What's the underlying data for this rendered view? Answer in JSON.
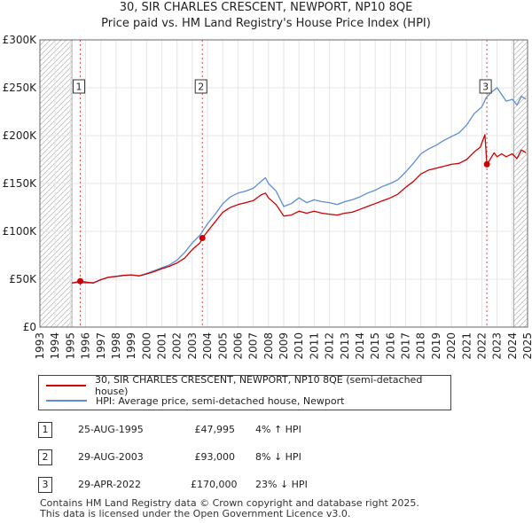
{
  "title_line1": "30, SIR CHARLES CRESCENT, NEWPORT, NP10 8QE",
  "title_line2": "Price paid vs. HM Land Registry's House Price Index (HPI)",
  "chart_data": {
    "type": "line",
    "title": "30, SIR CHARLES CRESCENT, NEWPORT, NP10 8QE — Price paid vs. HM Land Registry's House Price Index (HPI)",
    "xlim": [
      1993.0,
      2025.0
    ],
    "ylim": [
      0,
      300000
    ],
    "y_ticks": [
      0,
      50000,
      100000,
      150000,
      200000,
      250000,
      300000
    ],
    "y_tick_labels": [
      "£0",
      "£50K",
      "£100K",
      "£150K",
      "£200K",
      "£250K",
      "£300K"
    ],
    "x_ticks": [
      1993,
      1994,
      1995,
      1996,
      1997,
      1998,
      1999,
      2000,
      2001,
      2002,
      2003,
      2004,
      2005,
      2006,
      2007,
      2008,
      2009,
      2010,
      2011,
      2012,
      2013,
      2014,
      2015,
      2016,
      2017,
      2018,
      2019,
      2020,
      2021,
      2022,
      2023,
      2024,
      2025
    ],
    "grid": true,
    "hatched_ranges": [
      [
        1993.0,
        1995.1
      ],
      [
        2024.1,
        2025.0
      ]
    ],
    "series": [
      {
        "name": "30, SIR CHARLES CRESCENT, NEWPORT, NP10 8QE (semi-detached house)",
        "color": "#cc0000",
        "x": [
          1995.1,
          1995.65,
          1996.0,
          1996.5,
          1997.0,
          1997.5,
          1998.0,
          1998.5,
          1999.0,
          1999.5,
          2000.0,
          2000.5,
          2001.0,
          2001.5,
          2002.0,
          2002.5,
          2003.0,
          2003.5,
          2003.66,
          2004.0,
          2004.5,
          2005.0,
          2005.5,
          2006.0,
          2006.5,
          2007.0,
          2007.5,
          2007.8,
          2008.0,
          2008.5,
          2009.0,
          2009.5,
          2010.0,
          2010.5,
          2011.0,
          2011.5,
          2012.0,
          2012.5,
          2013.0,
          2013.5,
          2014.0,
          2014.5,
          2015.0,
          2015.5,
          2016.0,
          2016.5,
          2017.0,
          2017.5,
          2018.0,
          2018.5,
          2019.0,
          2019.5,
          2020.0,
          2020.5,
          2021.0,
          2021.5,
          2021.9,
          2022.2,
          2022.33,
          2022.5,
          2022.8,
          2023.0,
          2023.3,
          2023.6,
          2024.0,
          2024.3,
          2024.6,
          2024.9
        ],
        "values": [
          46000,
          47995,
          47000,
          46000,
          49500,
          52000,
          53000,
          54000,
          54500,
          53500,
          55500,
          58000,
          61000,
          63500,
          67000,
          72000,
          81000,
          88000,
          93000,
          100000,
          110000,
          120000,
          125000,
          128000,
          130000,
          132000,
          138000,
          140000,
          135000,
          128000,
          116000,
          117000,
          121000,
          119000,
          121000,
          119000,
          118000,
          117000,
          119000,
          120000,
          123000,
          126000,
          129000,
          132000,
          135000,
          139000,
          146000,
          152000,
          160000,
          164000,
          166000,
          168000,
          170000,
          171000,
          175000,
          183000,
          188000,
          201000,
          170000,
          174000,
          182000,
          178000,
          181000,
          178000,
          181000,
          176000,
          185000,
          182000
        ]
      },
      {
        "name": "HPI: Average price, semi-detached house, Newport",
        "color": "#5b8ed6",
        "x": [
          1995.1,
          1995.5,
          1996.0,
          1996.5,
          1997.0,
          1997.5,
          1998.0,
          1998.5,
          1999.0,
          1999.5,
          2000.0,
          2000.5,
          2001.0,
          2001.5,
          2002.0,
          2002.5,
          2003.0,
          2003.5,
          2004.0,
          2004.5,
          2005.0,
          2005.5,
          2006.0,
          2006.5,
          2007.0,
          2007.5,
          2007.8,
          2008.0,
          2008.5,
          2009.0,
          2009.5,
          2010.0,
          2010.5,
          2011.0,
          2011.5,
          2012.0,
          2012.5,
          2013.0,
          2013.5,
          2014.0,
          2014.5,
          2015.0,
          2015.5,
          2016.0,
          2016.5,
          2017.0,
          2017.5,
          2018.0,
          2018.5,
          2019.0,
          2019.5,
          2020.0,
          2020.5,
          2021.0,
          2021.5,
          2022.0,
          2022.3,
          2022.6,
          2023.0,
          2023.3,
          2023.6,
          2024.0,
          2024.3,
          2024.6,
          2024.9
        ],
        "values": [
          46000,
          46500,
          46000,
          46500,
          49500,
          52000,
          53000,
          54000,
          54500,
          53500,
          56000,
          59000,
          62000,
          65000,
          70000,
          78000,
          88000,
          96000,
          108000,
          118000,
          129000,
          136000,
          140000,
          142000,
          145000,
          152000,
          156000,
          150000,
          142000,
          126000,
          129000,
          135000,
          130000,
          133000,
          131000,
          130000,
          128000,
          131000,
          133000,
          136000,
          140000,
          143000,
          147000,
          150000,
          154000,
          162000,
          171000,
          181000,
          186000,
          190000,
          195000,
          199000,
          203000,
          211000,
          223000,
          230000,
          240000,
          245000,
          250000,
          243000,
          236000,
          238000,
          232000,
          241000,
          238000
        ]
      }
    ],
    "sales": [
      {
        "id": "1",
        "x": 1995.65,
        "value": 47995
      },
      {
        "id": "2",
        "x": 2003.66,
        "value": 93000
      },
      {
        "id": "3",
        "x": 2022.33,
        "value": 170000
      }
    ]
  },
  "legend": {
    "property_label": "30, SIR CHARLES CRESCENT, NEWPORT, NP10 8QE (semi-detached house)",
    "hpi_label": "HPI: Average price, semi-detached house, Newport"
  },
  "transactions": [
    {
      "num": "1",
      "date": "25-AUG-1995",
      "price": "£47,995",
      "hpi": "4% ↑ HPI"
    },
    {
      "num": "2",
      "date": "29-AUG-2003",
      "price": "£93,000",
      "hpi": "8% ↓ HPI"
    },
    {
      "num": "3",
      "date": "29-APR-2022",
      "price": "£170,000",
      "hpi": "23% ↓ HPI"
    }
  ],
  "footer": {
    "line1": "Contains HM Land Registry data © Crown copyright and database right 2025.",
    "line2": "This data is licensed under the Open Government Licence v3.0."
  }
}
